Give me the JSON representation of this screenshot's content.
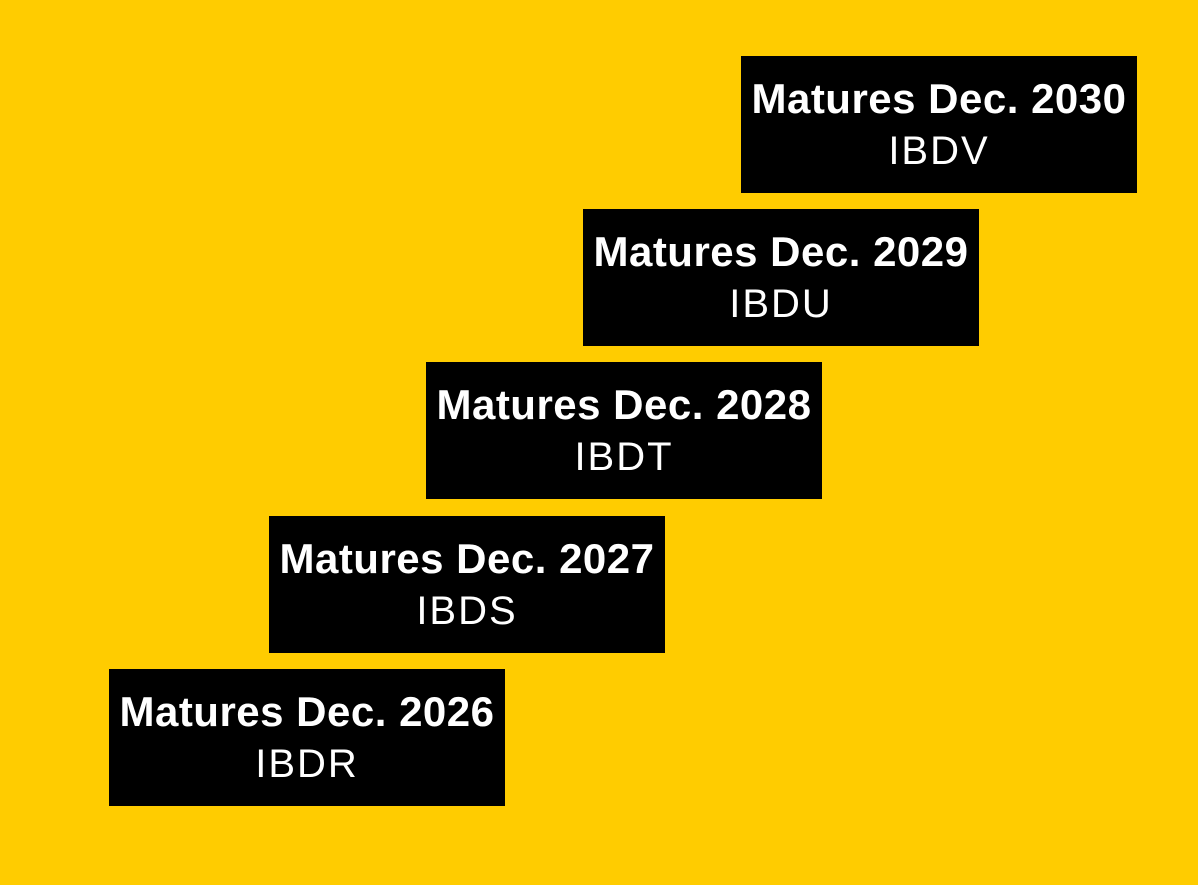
{
  "colors": {
    "background": "#FFCC00",
    "box": "#000000",
    "text": "#FFFFFF"
  },
  "ladder": {
    "rungs": [
      {
        "label": "Matures Dec. 2030",
        "ticker": "IBDV"
      },
      {
        "label": "Matures Dec. 2029",
        "ticker": "IBDU"
      },
      {
        "label": "Matures Dec. 2028",
        "ticker": "IBDT"
      },
      {
        "label": "Matures Dec. 2027",
        "ticker": "IBDS"
      },
      {
        "label": "Matures Dec. 2026",
        "ticker": "IBDR"
      }
    ]
  }
}
